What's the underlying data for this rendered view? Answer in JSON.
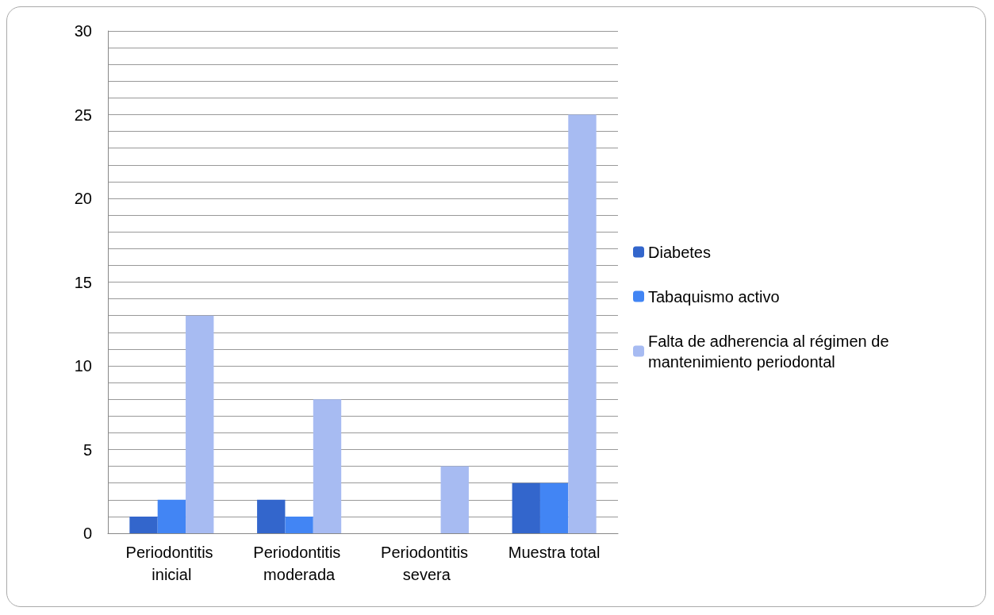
{
  "chart_data": {
    "type": "bar",
    "categories": [
      "Periodontitis inicial",
      "Periodontitis moderada",
      "Periodontitis severa",
      "Muestra total"
    ],
    "series": [
      {
        "name": "Diabetes",
        "color": "#3366cc",
        "values": [
          1,
          2,
          0,
          3
        ]
      },
      {
        "name": "Tabaquismo activo",
        "color": "#4285f4",
        "values": [
          2,
          1,
          0,
          3
        ]
      },
      {
        "name": "Falta de adherencia al régimen de mantenimiento periodontal",
        "color": "#a7bbf2",
        "values": [
          13,
          8,
          4,
          25
        ]
      }
    ],
    "ylim": [
      0,
      30
    ],
    "yticks": [
      0,
      {
        "value": 1,
        "label": null
      },
      {
        "value": 2,
        "label": null
      },
      {
        "value": 3,
        "label": null
      },
      {
        "value": 4,
        "label": null
      },
      5,
      {
        "value": 6,
        "label": null
      },
      {
        "value": 7,
        "label": null
      },
      {
        "value": 8,
        "label": null
      },
      {
        "value": 9,
        "label": null
      },
      10,
      {
        "value": 11,
        "label": null
      },
      {
        "value": 12,
        "label": null
      },
      {
        "value": 13,
        "label": null
      },
      {
        "value": 14,
        "label": null
      },
      15,
      {
        "value": 16,
        "label": null
      },
      {
        "value": 17,
        "label": null
      },
      {
        "value": 18,
        "label": null
      },
      {
        "value": 19,
        "label": null
      },
      20,
      {
        "value": 21,
        "label": null
      },
      {
        "value": 22,
        "label": null
      },
      {
        "value": 23,
        "label": null
      },
      {
        "value": 24,
        "label": null
      },
      25,
      {
        "value": 26,
        "label": null
      },
      {
        "value": 27,
        "label": null
      },
      {
        "value": 28,
        "label": null
      },
      {
        "value": 29,
        "label": null
      },
      30
    ],
    "grid": true,
    "legend": "right"
  }
}
